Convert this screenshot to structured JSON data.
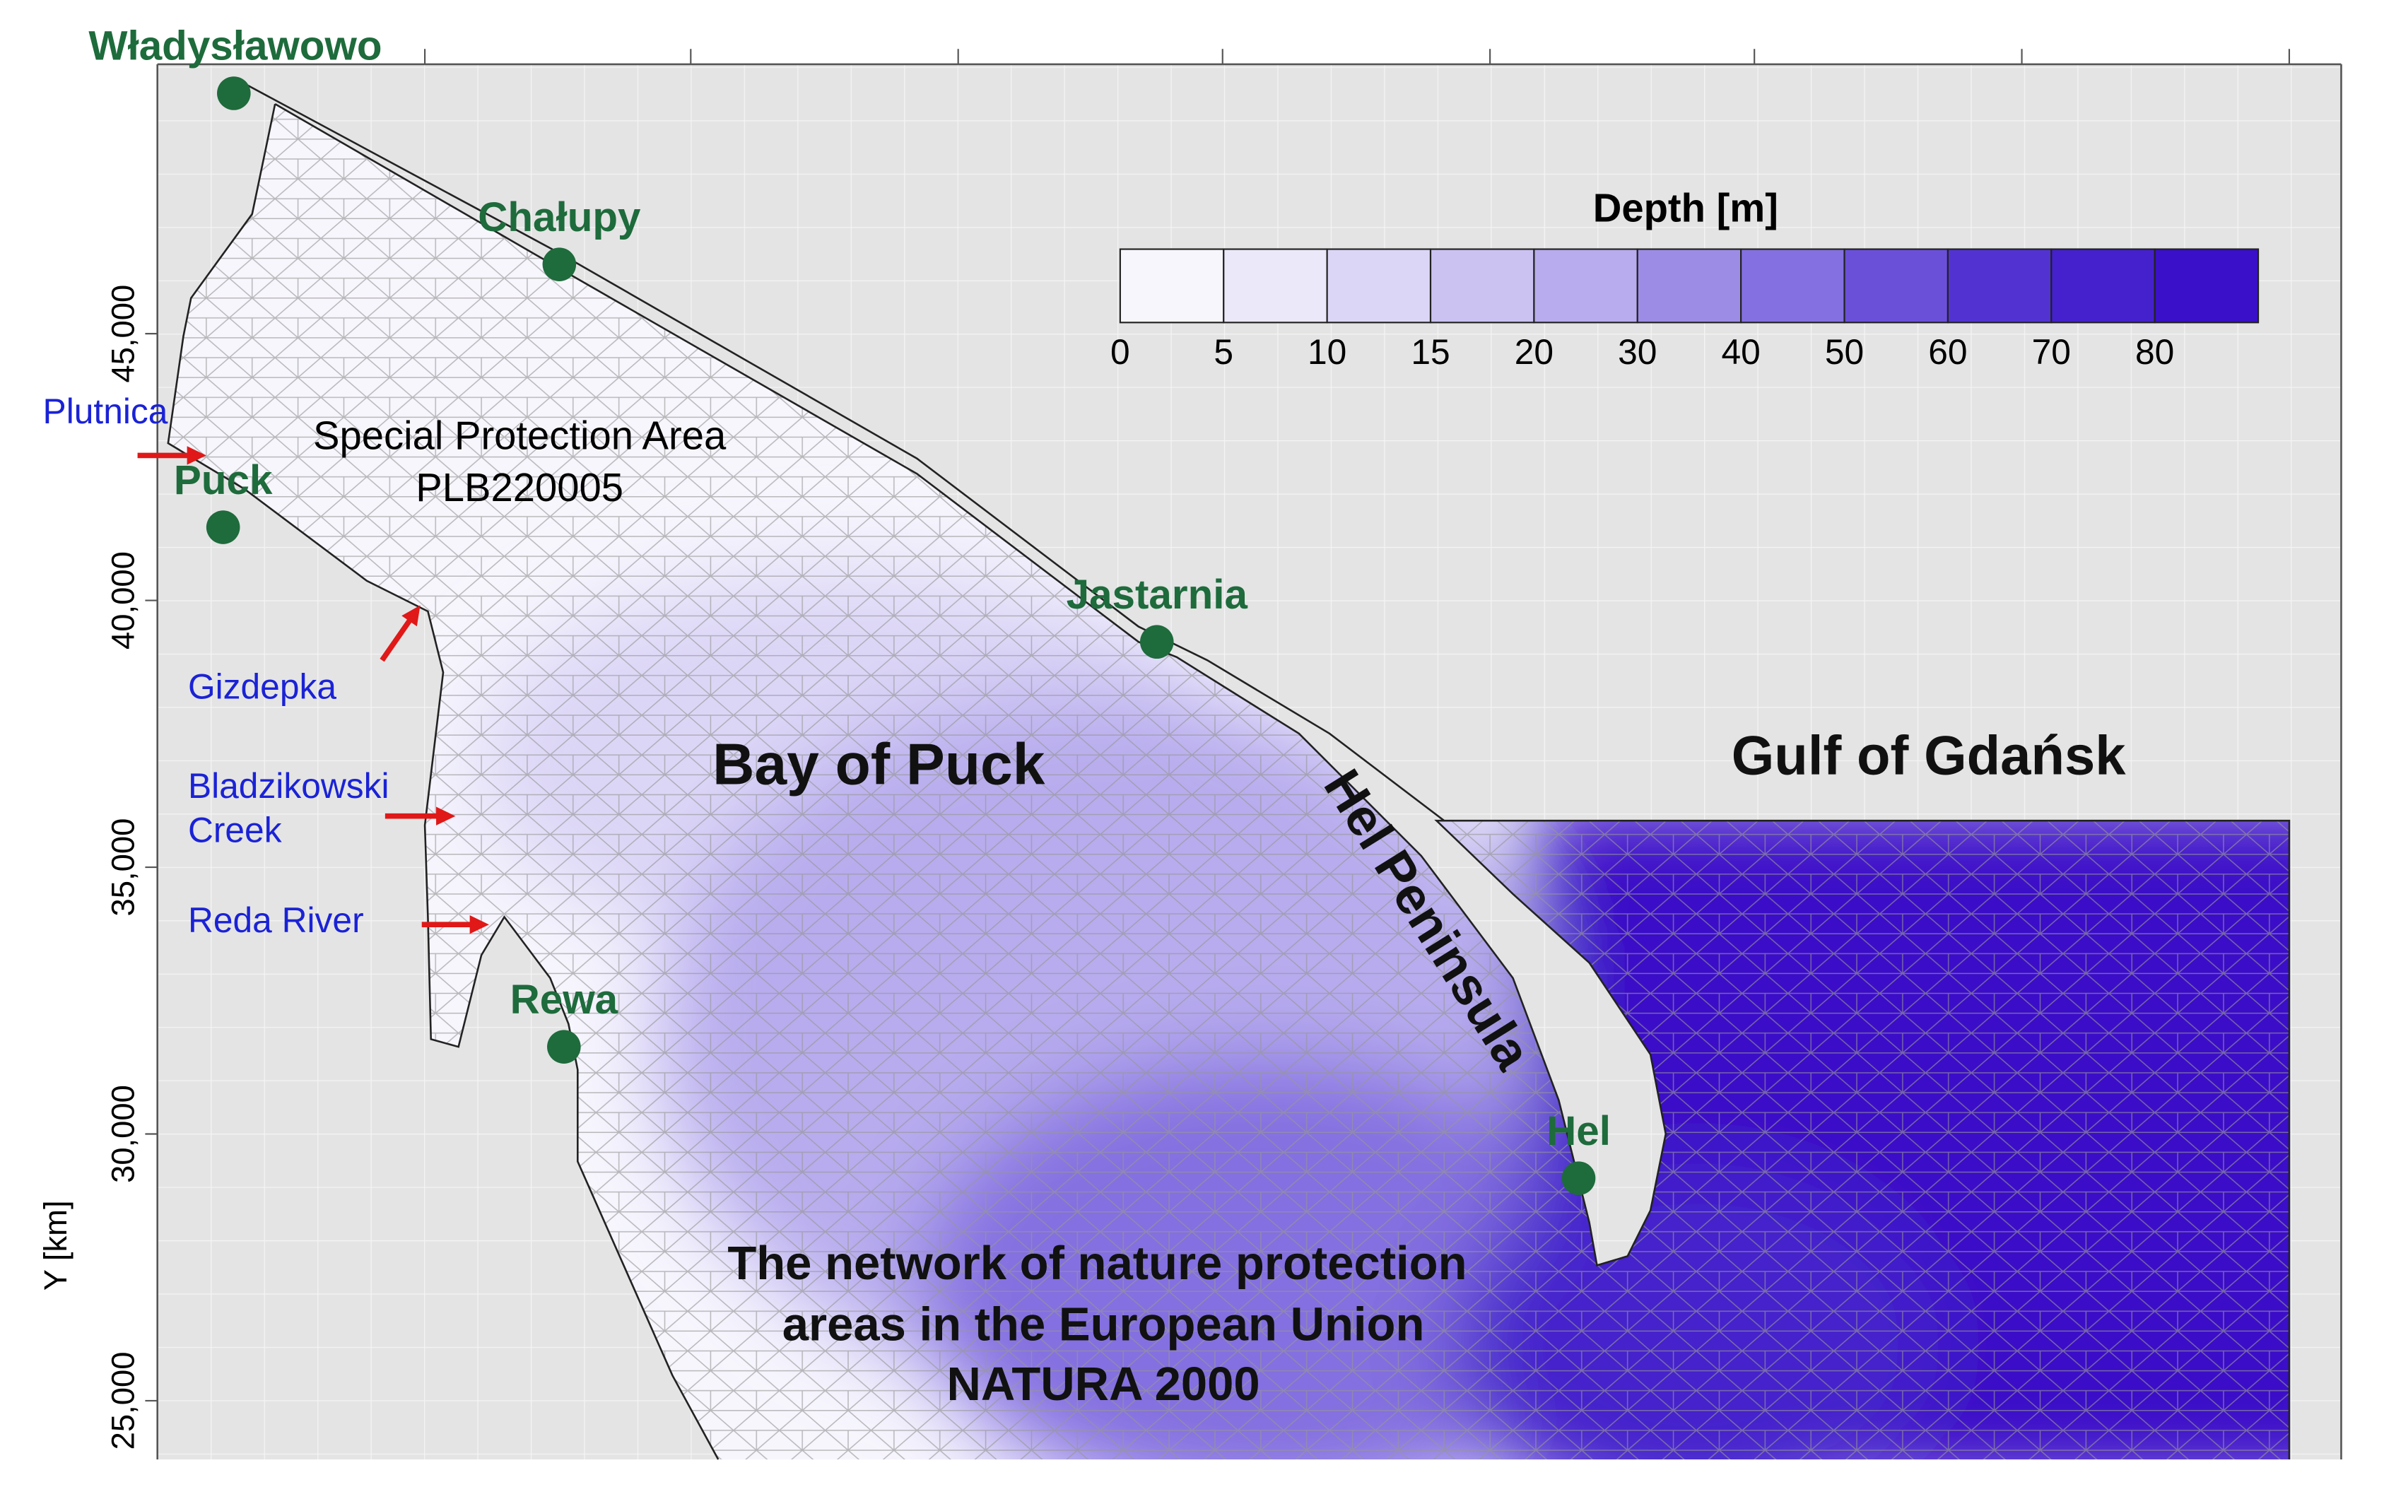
{
  "map": {
    "y_axis": {
      "label": "Y [km]",
      "lim": [
        23900,
        50050
      ],
      "ticks": [
        {
          "value": 25000,
          "label": "25,000"
        },
        {
          "value": 30000,
          "label": "30,000"
        },
        {
          "value": 35000,
          "label": "35,000"
        },
        {
          "value": 40000,
          "label": "40,000"
        },
        {
          "value": 45000,
          "label": "45,000"
        }
      ]
    },
    "legend": {
      "title": "Depth [m]",
      "levels": [
        {
          "value": 0,
          "color": "#f7f6fd"
        },
        {
          "value": 5,
          "color": "#ebe8fa"
        },
        {
          "value": 10,
          "color": "#dcd6f6"
        },
        {
          "value": 15,
          "color": "#cbc2f2"
        },
        {
          "value": 20,
          "color": "#b8acee"
        },
        {
          "value": 30,
          "color": "#9d8ce6"
        },
        {
          "value": 40,
          "color": "#8470e0"
        },
        {
          "value": 50,
          "color": "#6a50d8"
        },
        {
          "value": 60,
          "color": "#5233d2"
        },
        {
          "value": 70,
          "color": "#4421cc"
        },
        {
          "value": 80,
          "color": "#3a10c8"
        }
      ]
    },
    "places": [
      "Władysławowo",
      "Chałupy",
      "Puck",
      "Jastarnia",
      "Rewa",
      "Hel"
    ],
    "rivers": [
      [
        "Plutnica"
      ],
      [
        "Gizdepka"
      ],
      [
        "Bladzikowski",
        "Creek"
      ],
      [
        "Reda River"
      ]
    ],
    "labels": {
      "protection_area": [
        "Special Protection Area",
        "PLB220005"
      ],
      "bay": "Bay of Puck",
      "gulf": "Gulf of Gdańsk",
      "peninsula": "Hel Peninsula",
      "natura": [
        "The network of nature protection",
        "areas in the European Union",
        "NATURA 2000"
      ]
    }
  }
}
